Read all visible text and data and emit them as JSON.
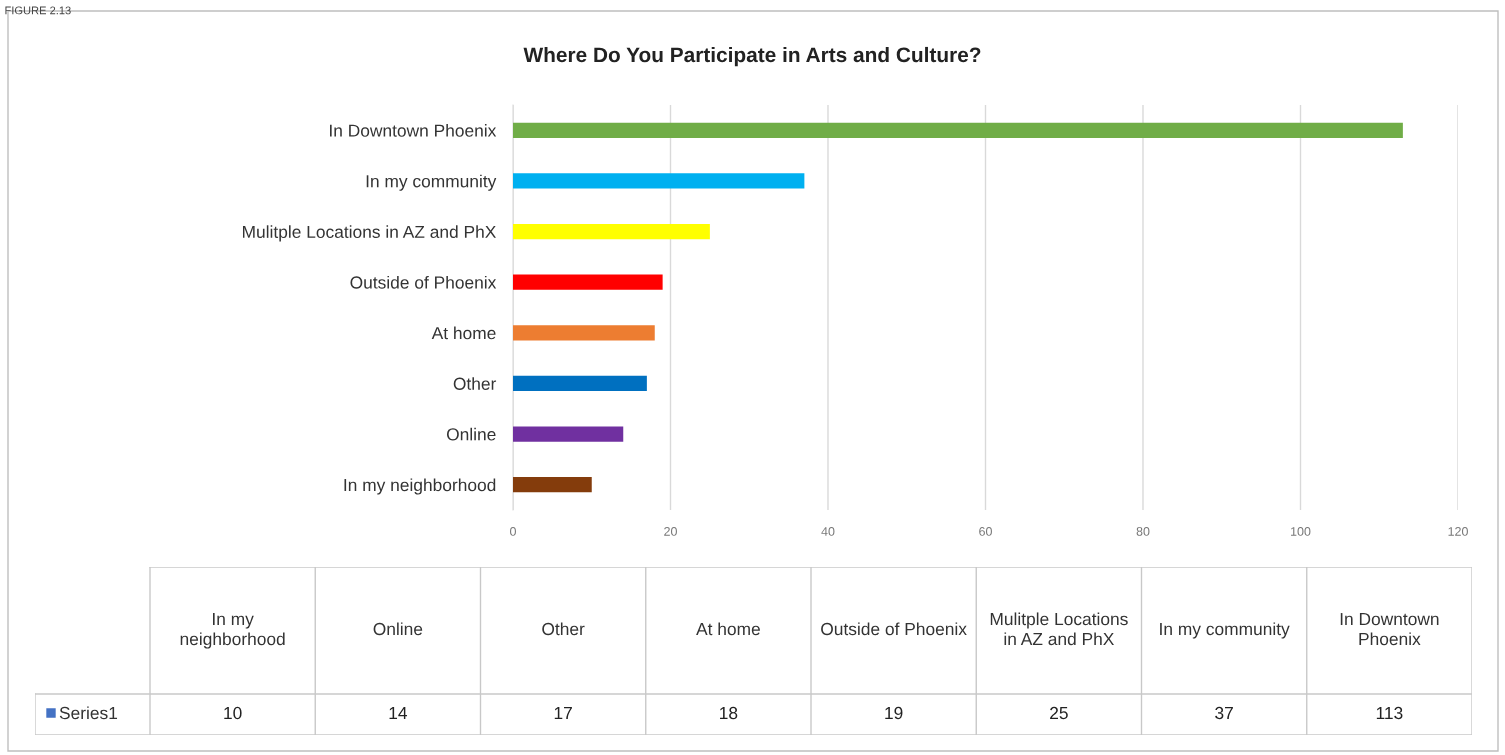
{
  "chart_data": [
    {
      "type": "bar",
      "orientation": "horizontal",
      "title": "Where Do You Participate in Arts and Culture?",
      "categories": [
        "In Downtown Phoenix",
        "In my community",
        "Mulitple Locations in AZ and PhX",
        "Outside of Phoenix",
        "At home",
        "Other",
        "Online",
        "In my neighborhood"
      ],
      "values": [
        113,
        37,
        25,
        19,
        18,
        17,
        14,
        10
      ],
      "colors": [
        "#70ad47",
        "#00b0f0",
        "#ffff00",
        "#ff0000",
        "#ed7d31",
        "#0070c0",
        "#7030a0",
        "#843c0c"
      ],
      "xlim": [
        0,
        120
      ],
      "xticks": [
        0,
        20,
        40,
        60,
        80,
        100,
        120
      ],
      "grid": "x",
      "annotations": [
        "FIGURE 2.13"
      ]
    },
    {
      "type": "other",
      "categories": [
        "In my neighborhood",
        "Online",
        "Other",
        "At home",
        "Outside of Phoenix",
        "Mulitple Locations in AZ and PhX",
        "In my community",
        "In Downtown Phoenix"
      ],
      "series": [
        {
          "name": "Series1",
          "color": "#4472c4",
          "values": [
            10,
            14,
            17,
            18,
            19,
            25,
            37,
            113
          ]
        }
      ],
      "legend": "left",
      "data_labels": true
    }
  ]
}
